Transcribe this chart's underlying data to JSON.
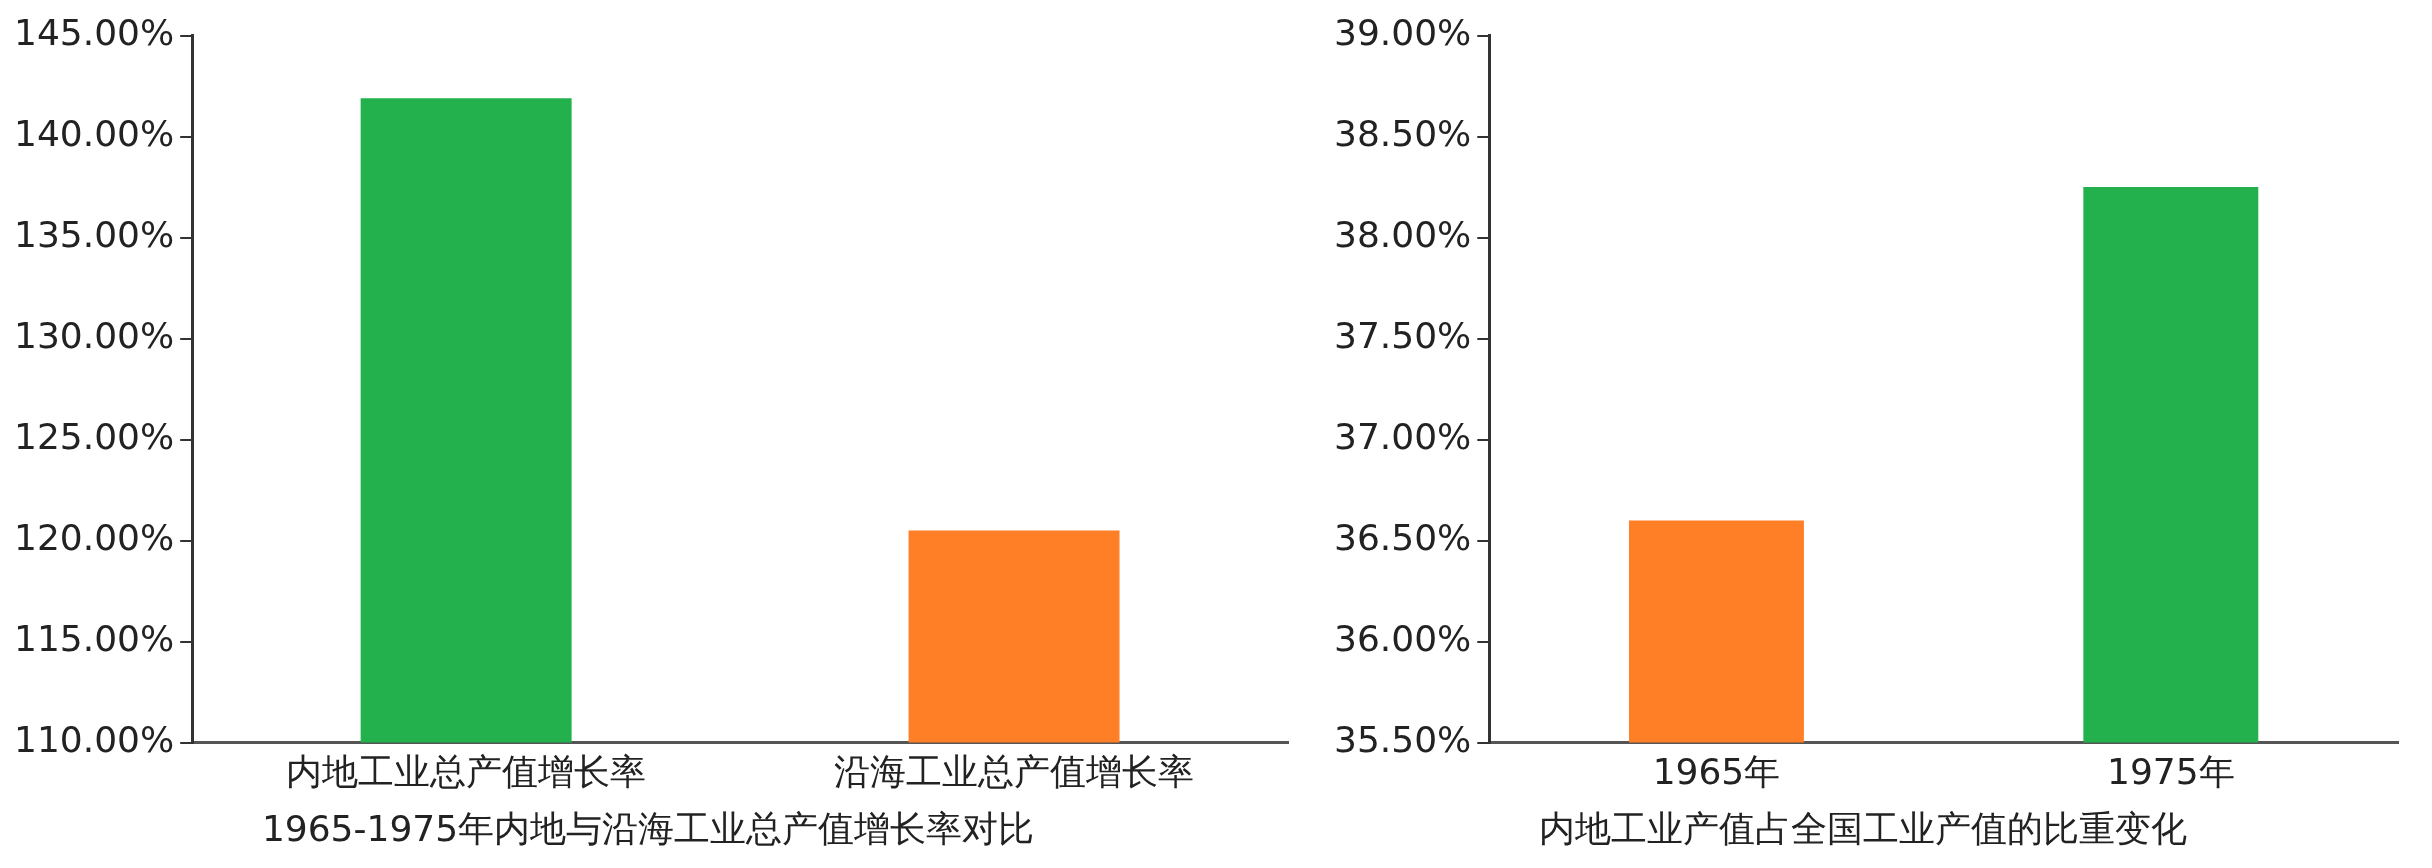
{
  "chart_data": [
    {
      "type": "bar",
      "title": "1965-1975年内地与沿海工业总产值增长率对比",
      "categories": [
        "内地工业总产值增长率",
        "沿海工业总产值增长率"
      ],
      "values": [
        141.9,
        120.5
      ],
      "colors": [
        "#22b14c",
        "#ff7f27"
      ],
      "ylim": [
        110,
        145
      ],
      "yticks": [
        {
          "value": 110,
          "label": "110.00%"
        },
        {
          "value": 115,
          "label": "115.00%"
        },
        {
          "value": 120,
          "label": "120.00%"
        },
        {
          "value": 125,
          "label": "125.00%"
        },
        {
          "value": 130,
          "label": "130.00%"
        },
        {
          "value": 135,
          "label": "135.00%"
        },
        {
          "value": 140,
          "label": "140.00%"
        },
        {
          "value": 145,
          "label": "145.00%"
        }
      ],
      "grid": false,
      "legend": false
    },
    {
      "type": "bar",
      "title": "内地工业产值占全国工业产值的比重变化",
      "categories": [
        "1965年",
        "1975年"
      ],
      "values": [
        36.6,
        38.25
      ],
      "colors": [
        "#ff7f27",
        "#22b14c"
      ],
      "ylim": [
        35.5,
        39
      ],
      "yticks": [
        {
          "value": 35.5,
          "label": "35.50%"
        },
        {
          "value": 36,
          "label": "36.00%"
        },
        {
          "value": 36.5,
          "label": "36.50%"
        },
        {
          "value": 37,
          "label": "37.00%"
        },
        {
          "value": 37.5,
          "label": "37.50%"
        },
        {
          "value": 38,
          "label": "38.00%"
        },
        {
          "value": 38.5,
          "label": "38.50%"
        },
        {
          "value": 39,
          "label": "39.00%"
        }
      ],
      "grid": false,
      "legend": false
    }
  ]
}
